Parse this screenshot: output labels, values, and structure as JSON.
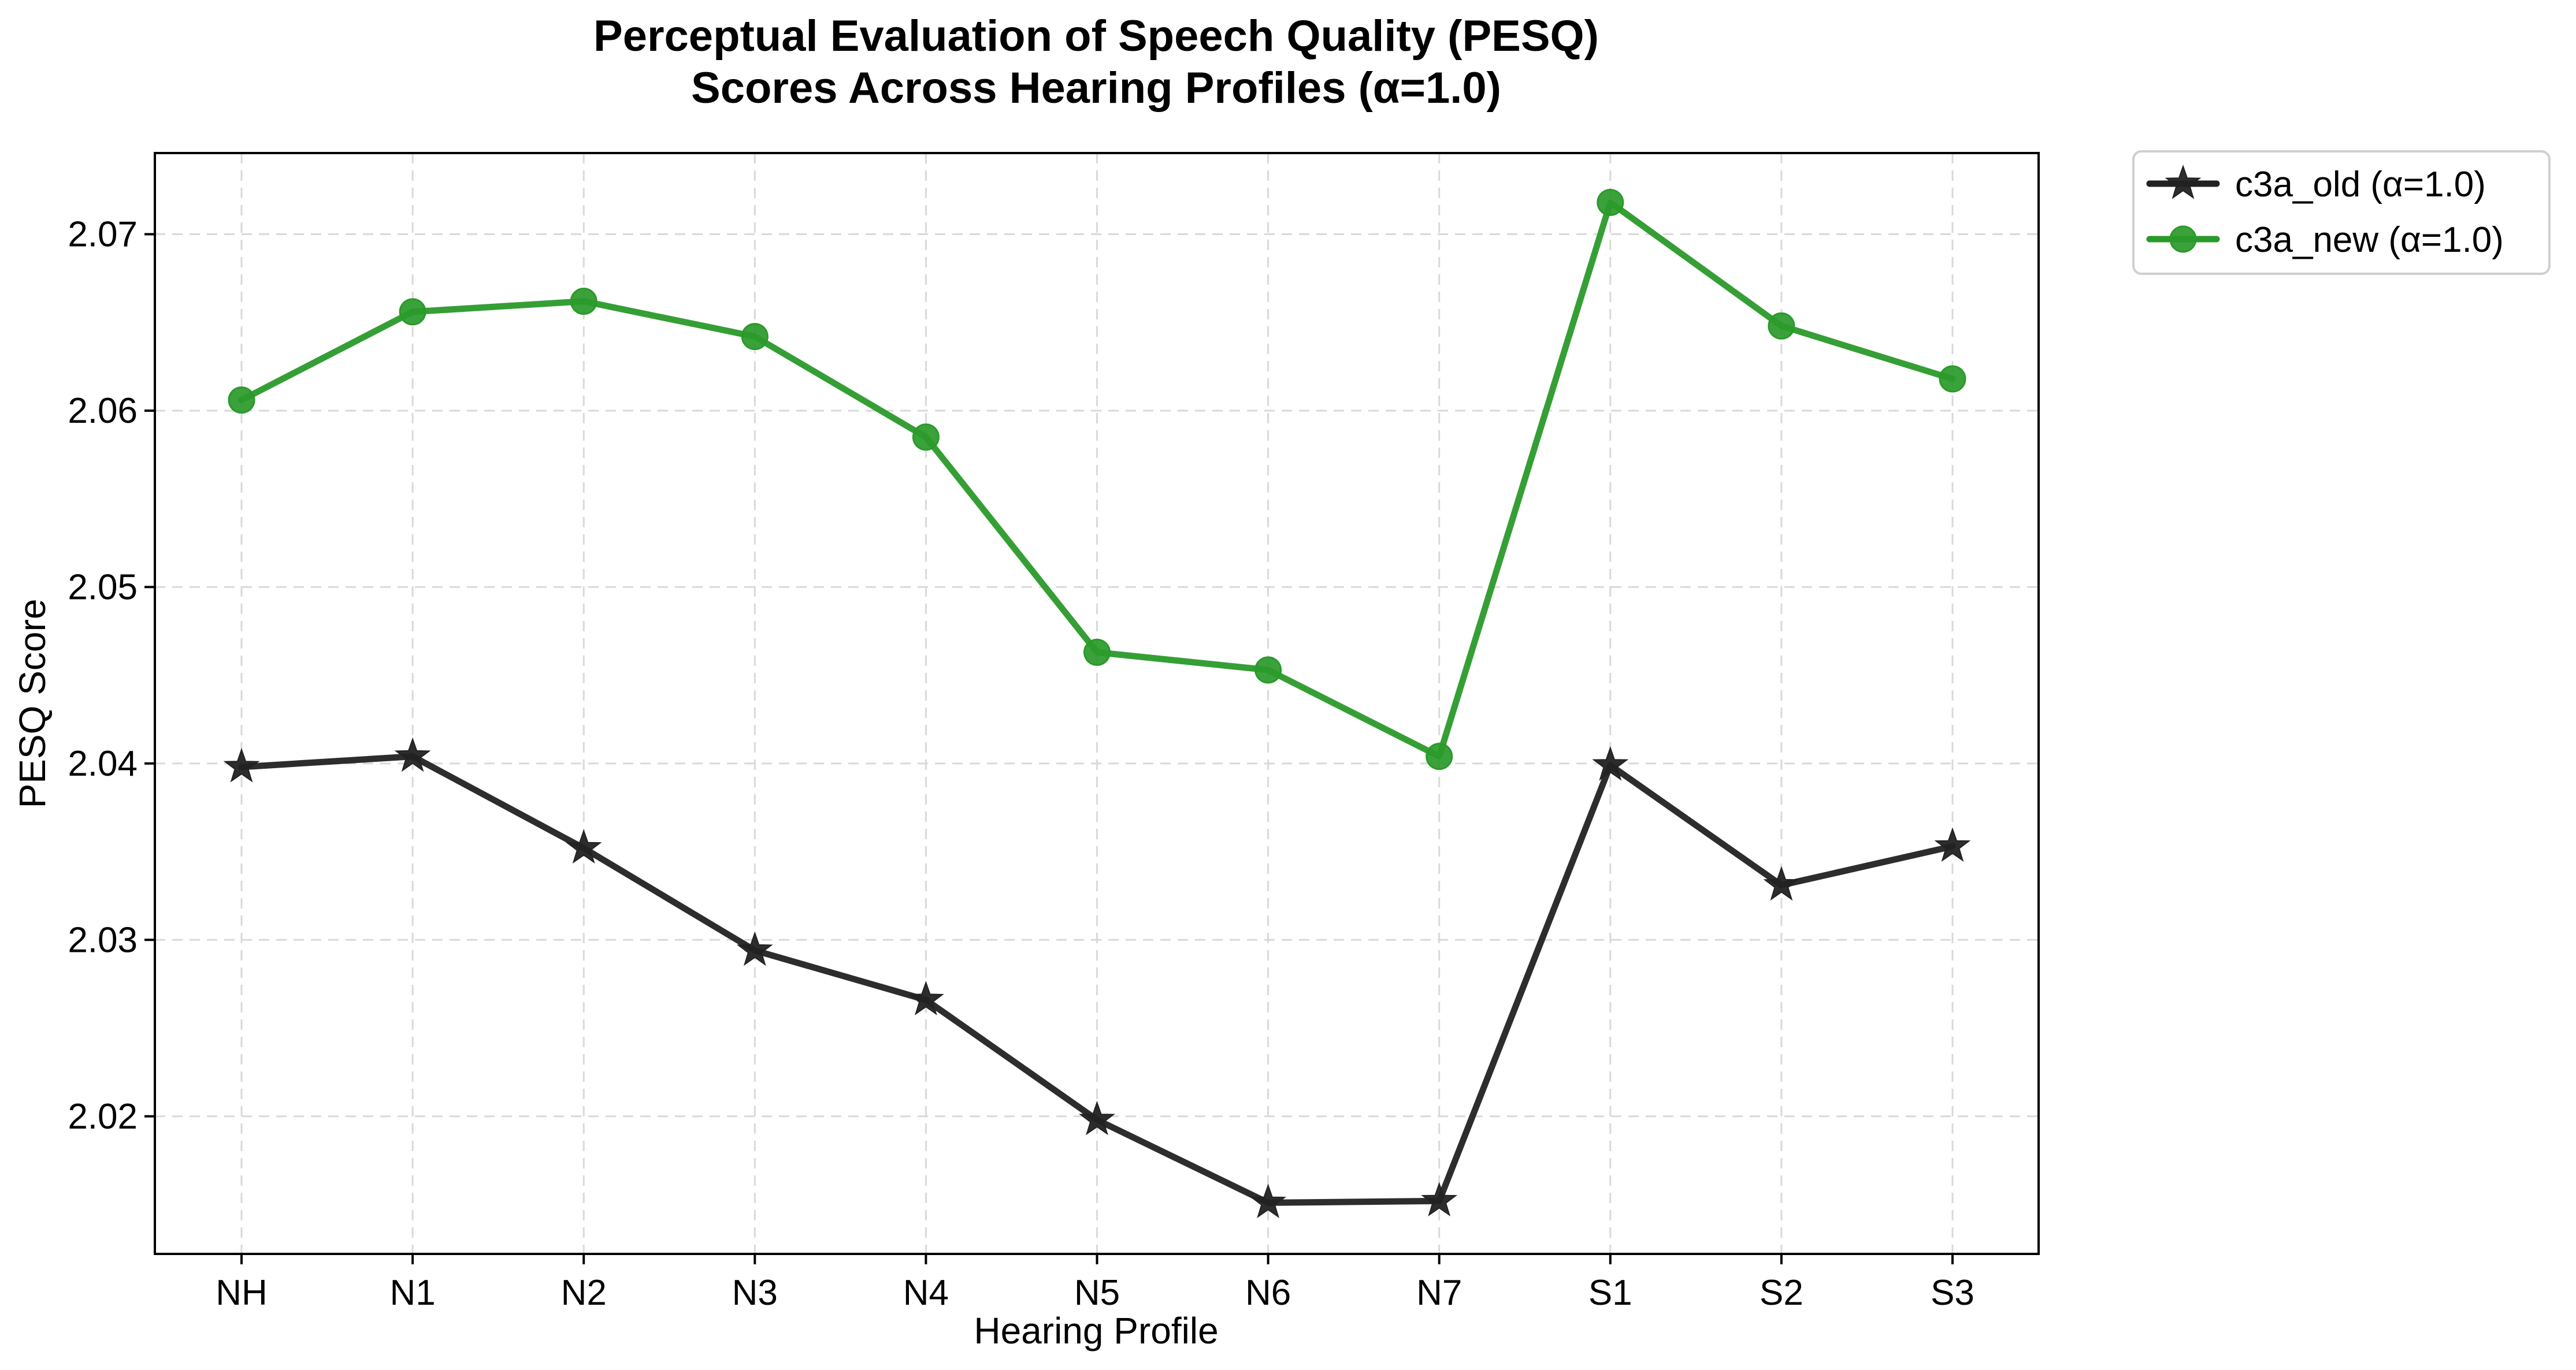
{
  "chart_data": {
    "type": "line",
    "title": [
      "Perceptual Evaluation of Speech Quality (PESQ)",
      "Scores Across Hearing Profiles (α=1.0)"
    ],
    "xlabel": "Hearing Profile",
    "ylabel": "PESQ Score",
    "categories": [
      "NH",
      "N1",
      "N2",
      "N3",
      "N4",
      "N5",
      "N6",
      "N7",
      "S1",
      "S2",
      "S3"
    ],
    "ylim": [
      2.0122,
      2.0746
    ],
    "yticks": [
      2.02,
      2.03,
      2.04,
      2.05,
      2.06,
      2.07
    ],
    "ytick_labels": [
      "2.02",
      "2.03",
      "2.04",
      "2.05",
      "2.06",
      "2.07"
    ],
    "grid": true,
    "legend_position": "outside top-right",
    "series": [
      {
        "name": "c3a_old (α=1.0)",
        "color": "#222222",
        "marker": "star",
        "values": [
          2.0398,
          2.0404,
          2.0352,
          2.0294,
          2.0266,
          2.0198,
          2.0151,
          2.0152,
          2.0399,
          2.0331,
          2.0353
        ]
      },
      {
        "name": "c3a_new (α=1.0)",
        "color": "#2a9a2a",
        "marker": "circle",
        "values": [
          2.0606,
          2.0656,
          2.0662,
          2.0642,
          2.0585,
          2.0463,
          2.0453,
          2.0404,
          2.0718,
          2.0648,
          2.0618
        ]
      }
    ]
  }
}
